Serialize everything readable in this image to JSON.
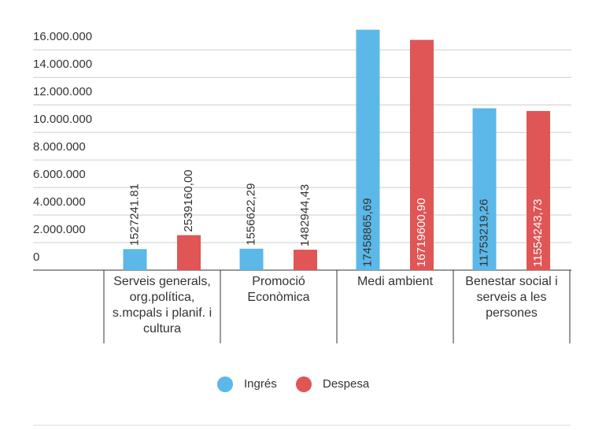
{
  "chart_data": {
    "type": "bar",
    "categories": [
      "Serveis generals, org.política, s.mcpals i planif. i cultura",
      "Promoció Econòmica",
      "Medi ambient",
      "Benestar social i serveis a les persones"
    ],
    "series": [
      {
        "name": "Ingrés",
        "color": "#5bb8e8",
        "values": [
          1527241.81,
          1556622.29,
          17458865.69,
          11753219.26
        ],
        "value_labels": [
          "1527241.81",
          "1556622,29",
          "17458865,69",
          "11753219,26"
        ]
      },
      {
        "name": "Despesa",
        "color": "#e05555",
        "values": [
          2539160.0,
          1482944.43,
          16719600.9,
          11554243.73
        ],
        "value_labels": [
          "2539160,00",
          "1482944,43",
          "16719600,90",
          "11554243,73"
        ]
      }
    ],
    "ylim": [
      0,
      17500000
    ],
    "yticks": [
      0,
      {
        "value": 2000000,
        "label": "2.000.000"
      },
      {
        "value": 4000000,
        "label": "4.000.000"
      },
      {
        "value": 6000000,
        "label": "6.000.000"
      },
      {
        "value": 8000000,
        "label": "8.000.000"
      },
      {
        "value": 10000000,
        "label": "10.000.000"
      },
      {
        "value": 12000000,
        "label": "12.000.000"
      },
      {
        "value": 14000000,
        "label": "14.000.000"
      },
      {
        "value": 16000000,
        "label": "16.000.000"
      }
    ],
    "grid": true,
    "legend": "bottom"
  }
}
